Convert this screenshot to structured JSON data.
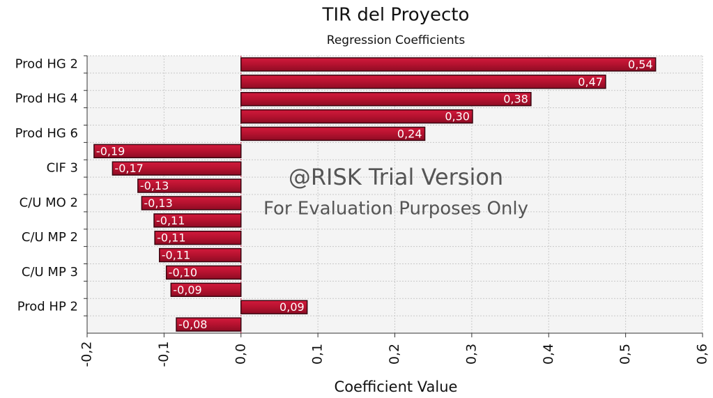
{
  "chart_data": {
    "type": "bar",
    "orientation": "horizontal",
    "title": "TIR del Proyecto",
    "subtitle": "Regression Coefficients",
    "x_label": "Coefficient Value",
    "watermark": [
      "@RISK Trial Version",
      "For Evaluation Purposes Only"
    ],
    "categories": [
      "Prod HG 2",
      null,
      "Prod HG 4",
      null,
      "Prod HG 6",
      null,
      "CIF 3",
      null,
      "C/U MO 2",
      null,
      "C/U MP 2",
      null,
      "C/U MP 3",
      null,
      "Prod HP 2",
      null
    ],
    "values": [
      0.539,
      0.474,
      0.377,
      0.301,
      0.239,
      -0.191,
      -0.167,
      -0.134,
      -0.129,
      -0.113,
      -0.112,
      -0.106,
      -0.097,
      -0.091,
      0.086,
      -0.084
    ],
    "value_labels": [
      "0,54",
      "0,47",
      "0,38",
      "0,30",
      "0,24",
      "-0,19",
      "-0,17",
      "-0,13",
      "-0,13",
      "-0,11",
      "-0,11",
      "-0,11",
      "-0,10",
      "-0,09",
      "0,09",
      "-0,08"
    ],
    "color": "#b5122f",
    "xlim": [
      -0.2,
      0.6
    ],
    "xticks": [
      {
        "value": -0.2,
        "label": "-0,2"
      },
      {
        "value": -0.1,
        "label": "-0,1"
      },
      {
        "value": 0,
        "label": "0,0"
      },
      {
        "value": 0.1,
        "label": "0,1"
      },
      {
        "value": 0.2,
        "label": "0,2"
      },
      {
        "value": 0.3,
        "label": "0,3"
      },
      {
        "value": 0.4,
        "label": "0,4"
      },
      {
        "value": 0.5,
        "label": "0,5"
      },
      {
        "value": 0.6,
        "label": "0,6"
      }
    ],
    "grid": true
  }
}
